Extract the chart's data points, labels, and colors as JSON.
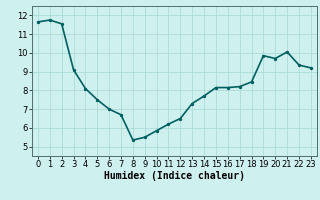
{
  "x": [
    0,
    1,
    2,
    3,
    4,
    5,
    6,
    7,
    8,
    9,
    10,
    11,
    12,
    13,
    14,
    15,
    16,
    17,
    18,
    19,
    20,
    21,
    22,
    23
  ],
  "y": [
    11.65,
    11.75,
    11.55,
    9.1,
    8.1,
    7.5,
    7.0,
    6.7,
    5.35,
    5.5,
    5.85,
    6.2,
    6.5,
    7.3,
    7.7,
    8.15,
    8.15,
    8.2,
    8.45,
    9.85,
    9.7,
    10.05,
    9.35,
    9.2
  ],
  "line_color": "#006060",
  "marker_color": "#006060",
  "bg_color": "#cef0ee",
  "grid_color": "#a8d8d4",
  "xlabel": "Humidex (Indice chaleur)",
  "xlim": [
    -0.5,
    23.5
  ],
  "ylim": [
    4.5,
    12.5
  ],
  "yticks": [
    5,
    6,
    7,
    8,
    9,
    10,
    11,
    12
  ],
  "xticks": [
    0,
    1,
    2,
    3,
    4,
    5,
    6,
    7,
    8,
    9,
    10,
    11,
    12,
    13,
    14,
    15,
    16,
    17,
    18,
    19,
    20,
    21,
    22,
    23
  ],
  "xlabel_fontsize": 7,
  "tick_fontsize": 6,
  "line_width": 1.2,
  "marker_size": 2.8
}
